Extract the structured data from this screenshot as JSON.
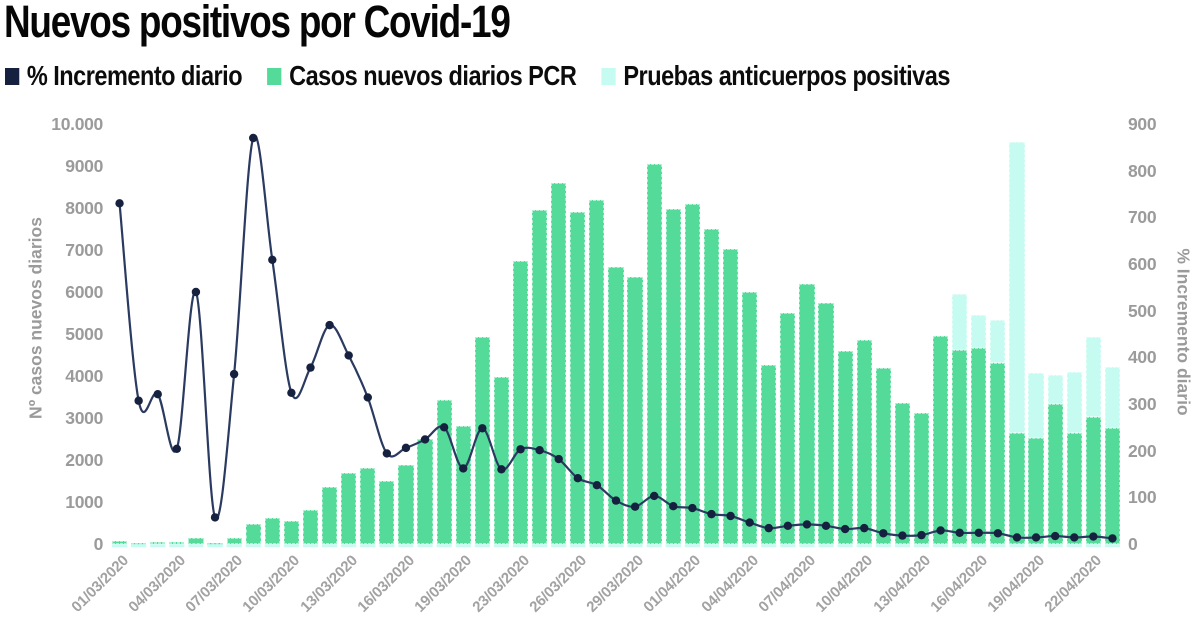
{
  "title": "Nuevos positivos por Covid-19",
  "legend": [
    {
      "label": "% Incremento diario",
      "color": "#16213F"
    },
    {
      "label": "Casos nuevos diarios PCR",
      "color": "#54DB9A"
    },
    {
      "label": "Pruebas anticuerpos positivas",
      "color": "#C5FBF1"
    }
  ],
  "chart_data": {
    "type": "bar",
    "subtype": "stacked-bars-plus-line-dual-axis",
    "title": "Nuevos positivos por Covid-19",
    "background": "#FFFFFF",
    "grid": false,
    "legend_position": "top-left",
    "left_axis": {
      "label": "Nº casos nuevos diarios",
      "min": 0,
      "max": 10000,
      "ticks": [
        "10.000",
        "9000",
        "8000",
        "7000",
        "6000",
        "5000",
        "4000",
        "3000",
        "2000",
        "1000",
        "0"
      ]
    },
    "right_axis": {
      "label": "% Incremento diario",
      "min": 0,
      "max": 900,
      "ticks": [
        "900",
        "800",
        "700",
        "600",
        "500",
        "400",
        "300",
        "200",
        "100",
        "0"
      ]
    },
    "x": [
      "01/03/2020",
      "02/03/2020",
      "03/03/2020",
      "04/03/2020",
      "05/03/2020",
      "06/03/2020",
      "07/03/2020",
      "08/03/2020",
      "09/03/2020",
      "10/03/2020",
      "11/03/2020",
      "12/03/2020",
      "13/03/2020",
      "14/03/2020",
      "15/03/2020",
      "16/03/2020",
      "17/03/2020",
      "18/03/2020",
      "19/03/2020",
      "20/03/2020",
      "22/03/2020",
      "23/03/2020",
      "24/03/2020",
      "25/03/2020",
      "26/03/2020",
      "27/03/2020",
      "28/03/2020",
      "29/03/2020",
      "30/03/2020",
      "31/03/2020",
      "01/04/2020",
      "02/04/2020",
      "03/04/2020",
      "04/04/2020",
      "05/04/2020",
      "06/04/2020",
      "07/04/2020",
      "08/04/2020",
      "09/04/2020",
      "10/04/2020",
      "11/04/2020",
      "12/04/2020",
      "13/04/2020",
      "14/04/2020",
      "15/04/2020",
      "16/04/2020",
      "17/04/2020",
      "18/04/2020",
      "19/04/2020",
      "20/04/2020",
      "21/04/2020",
      "22/04/2020",
      "23/04/2020"
    ],
    "x_tick_every": 3,
    "x_tick_labels": [
      "01/03/2020",
      "04/03/2020",
      "07/03/2020",
      "10/03/2020",
      "13/03/2020",
      "16/03/2020",
      "19/03/2020",
      "23/03/2020",
      "26/03/2020",
      "29/03/2020",
      "01/04/2020",
      "04/04/2020",
      "07/04/2020",
      "10/04/2020",
      "13/04/2020",
      "16/04/2020",
      "19/04/2020",
      "22/04/2020"
    ],
    "series": [
      {
        "name": "Casos nuevos diarios PCR",
        "type": "bar",
        "axis": "left",
        "color": "#54DB9A",
        "values": [
          60,
          30,
          55,
          40,
          150,
          20,
          140,
          480,
          625,
          550,
          800,
          1350,
          1700,
          1800,
          1500,
          1870,
          2500,
          3430,
          2820,
          4930,
          3965,
          6750,
          7950,
          8600,
          7900,
          8200,
          6600,
          6350,
          9050,
          7970,
          8100,
          7500,
          7030,
          6000,
          4260,
          5500,
          6200,
          5750,
          4600,
          4850,
          4200,
          3350,
          3110,
          4950,
          4620,
          4660,
          4300,
          2650,
          2530,
          3330,
          2635,
          3030,
          2755
        ]
      },
      {
        "name": "Pruebas anticuerpos positivas",
        "type": "bar",
        "axis": "left",
        "color": "#C5FBF1",
        "stacked_on": "Casos nuevos diarios PCR",
        "values": [
          0,
          0,
          0,
          0,
          0,
          0,
          0,
          0,
          0,
          0,
          0,
          0,
          0,
          0,
          0,
          0,
          0,
          0,
          0,
          0,
          0,
          0,
          0,
          0,
          0,
          0,
          0,
          0,
          0,
          0,
          0,
          0,
          0,
          0,
          0,
          0,
          0,
          0,
          0,
          0,
          0,
          0,
          0,
          0,
          1325,
          790,
          1040,
          6915,
          1535,
          690,
          1465,
          1890,
          1450
        ]
      },
      {
        "name": "% Incremento diario",
        "type": "line",
        "axis": "right",
        "color": "#2B3A60",
        "point_color": "#16213F",
        "values": [
          730,
          307,
          321,
          204,
          540,
          57,
          364,
          870,
          609,
          324,
          378,
          469,
          404,
          314,
          194,
          206,
          224,
          250,
          162,
          248,
          160,
          203,
          201,
          182,
          141,
          126,
          93,
          80,
          103,
          81,
          77,
          64,
          60,
          46,
          34,
          39,
          42,
          39,
          32,
          34,
          23,
          18,
          19,
          29,
          24,
          24,
          23,
          14,
          14,
          17,
          14,
          16,
          12
        ]
      }
    ]
  }
}
